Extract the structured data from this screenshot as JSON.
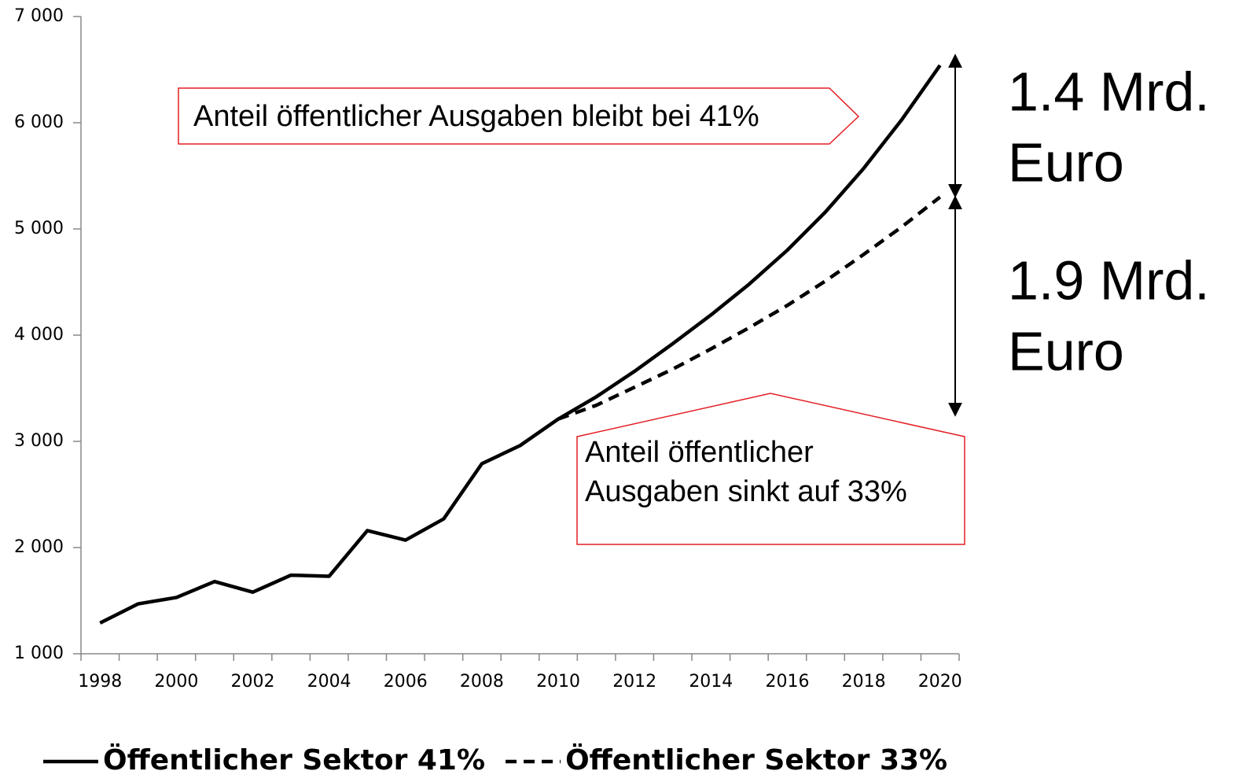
{
  "chart_data": {
    "type": "line",
    "categories": [
      "1998",
      null,
      "2000",
      null,
      "2002",
      null,
      "2004",
      null,
      "2006",
      null,
      "2008",
      null,
      "2010",
      null,
      "2012",
      null,
      "2014",
      null,
      "2016",
      null,
      "2018",
      null,
      "2020"
    ],
    "series": [
      {
        "name": "Öffentlicher Sektor 41%",
        "color": "#000000",
        "line_style": "solid",
        "values": [
          1290,
          1470,
          1530,
          1680,
          1580,
          1740,
          1730,
          2160,
          2070,
          2270,
          2790,
          2960,
          3210,
          3420,
          3660,
          3920,
          4190,
          4480,
          4800,
          5160,
          5570,
          6030,
          6540
        ]
      },
      {
        "name": "Öffentlicher Sektor 33%",
        "color": "#000000",
        "line_style": "dashed",
        "values": [
          null,
          null,
          null,
          null,
          null,
          null,
          null,
          null,
          null,
          null,
          null,
          null,
          3210,
          3340,
          3510,
          3680,
          3870,
          4070,
          4280,
          4510,
          4760,
          5020,
          5300
        ]
      }
    ],
    "ylim": [
      1000,
      7000
    ],
    "yticks": [
      {
        "value": 1000,
        "label": "1 000"
      },
      {
        "value": 2000,
        "label": "2 000"
      },
      {
        "value": 3000,
        "label": "3 000"
      },
      {
        "value": 4000,
        "label": "4 000"
      },
      {
        "value": 5000,
        "label": "5 000"
      },
      {
        "value": 6000,
        "label": "6 000"
      },
      {
        "value": 7000,
        "label": "7 000"
      }
    ],
    "grid": false,
    "legend": "bottom",
    "annotations": [
      {
        "lines": [
          "Anteil öffentlicher Ausgaben bleibt bei 41%"
        ]
      },
      {
        "lines": [
          "Anteil öffentlicher",
          "Ausgaben sinkt auf 33%"
        ]
      },
      {
        "lines": [
          "1.4 Mrd.",
          "Euro"
        ]
      },
      {
        "lines": [
          "1.9 Mrd.",
          "Euro"
        ]
      }
    ]
  }
}
